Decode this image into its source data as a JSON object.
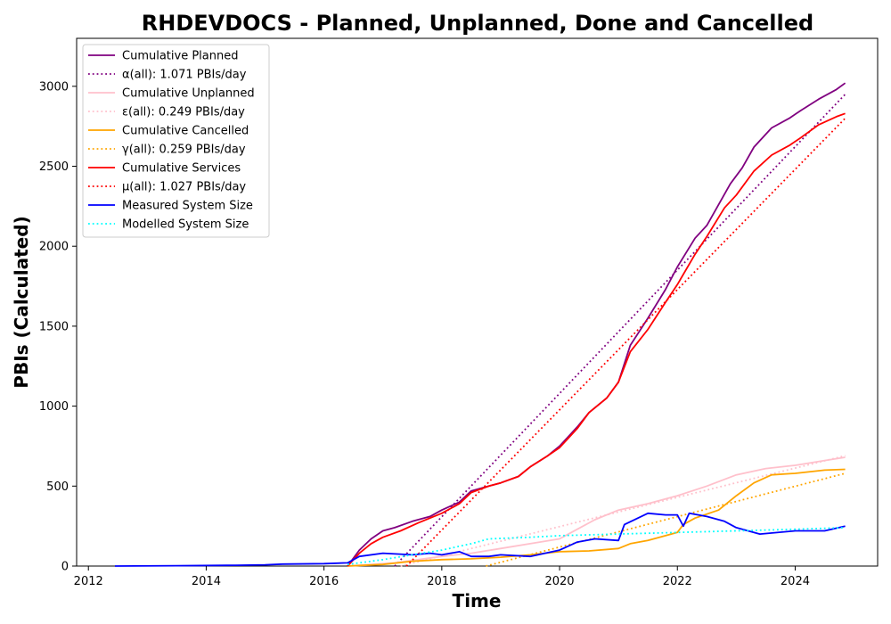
{
  "chart_data": {
    "type": "line",
    "title": "RHDEVDOCS - Planned, Unplanned, Done  and Cancelled",
    "xlabel": "Time",
    "ylabel": "PBIs (Calculated)",
    "xlim": [
      2011.8,
      2025.4
    ],
    "ylim": [
      0,
      3300
    ],
    "xticks": [
      2012,
      2014,
      2016,
      2018,
      2020,
      2022,
      2024
    ],
    "yticks": [
      0,
      500,
      1000,
      1500,
      2000,
      2500,
      3000
    ],
    "grid": false,
    "legend_position": "top-left",
    "series": [
      {
        "name": "Cumulative Planned",
        "color": "#800080",
        "style": "solid",
        "x": [
          2016.4,
          2016.6,
          2016.8,
          2017.0,
          2017.2,
          2017.5,
          2017.8,
          2018.0,
          2018.3,
          2018.5,
          2018.8,
          2019.0,
          2019.3,
          2019.5,
          2019.8,
          2020.0,
          2020.3,
          2020.5,
          2020.8,
          2021.0,
          2021.2,
          2021.5,
          2021.8,
          2022.0,
          2022.3,
          2022.5,
          2022.7,
          2022.9,
          2023.1,
          2023.3,
          2023.6,
          2023.9,
          2024.1,
          2024.4,
          2024.7,
          2024.85
        ],
        "y": [
          0,
          100,
          170,
          220,
          240,
          280,
          310,
          350,
          400,
          470,
          500,
          520,
          560,
          620,
          690,
          750,
          870,
          960,
          1050,
          1150,
          1380,
          1550,
          1730,
          1870,
          2050,
          2130,
          2260,
          2390,
          2490,
          2620,
          2740,
          2800,
          2850,
          2920,
          2980,
          3020
        ]
      },
      {
        "name": "α(all): 1.071 PBIs/day",
        "color": "#800080",
        "style": "dotted",
        "x": [
          2017.2,
          2024.85
        ],
        "y": [
          0,
          2950
        ]
      },
      {
        "name": "Cumulative Unplanned",
        "color": "#ffc0cb",
        "style": "solid",
        "x": [
          2016.4,
          2016.8,
          2017.2,
          2017.6,
          2018.0,
          2018.5,
          2019.0,
          2019.5,
          2020.0,
          2020.3,
          2020.6,
          2021.0,
          2021.5,
          2022.0,
          2022.5,
          2023.0,
          2023.5,
          2024.0,
          2024.5,
          2024.85
        ],
        "y": [
          0,
          10,
          20,
          40,
          60,
          80,
          110,
          140,
          170,
          230,
          290,
          350,
          390,
          440,
          500,
          570,
          610,
          630,
          660,
          680
        ]
      },
      {
        "name": "ε(all): 0.249 PBIs/day",
        "color": "#ffc0cb",
        "style": "dotted",
        "x": [
          2017.3,
          2024.85
        ],
        "y": [
          0,
          690
        ]
      },
      {
        "name": "Cumulative Cancelled",
        "color": "#ffa500",
        "style": "solid",
        "x": [
          2016.4,
          2017.0,
          2017.5,
          2018.0,
          2018.5,
          2019.0,
          2019.5,
          2020.0,
          2020.5,
          2021.0,
          2021.2,
          2021.5,
          2021.8,
          2022.0,
          2022.1,
          2022.3,
          2022.7,
          2023.0,
          2023.3,
          2023.6,
          2024.0,
          2024.5,
          2024.85
        ],
        "y": [
          0,
          10,
          30,
          40,
          45,
          55,
          70,
          90,
          95,
          110,
          140,
          160,
          190,
          210,
          260,
          300,
          350,
          440,
          520,
          570,
          580,
          600,
          605
        ]
      },
      {
        "name": "γ(all): 0.259 PBIs/day",
        "color": "#ffa500",
        "style": "dotted",
        "x": [
          2018.75,
          2024.85
        ],
        "y": [
          0,
          580
        ]
      },
      {
        "name": "Cumulative Services",
        "color": "#ff0000",
        "style": "solid",
        "x": [
          2016.4,
          2016.6,
          2016.8,
          2017.0,
          2017.3,
          2017.6,
          2018.0,
          2018.3,
          2018.5,
          2018.8,
          2019.0,
          2019.3,
          2019.5,
          2019.8,
          2020.0,
          2020.3,
          2020.5,
          2020.8,
          2021.0,
          2021.2,
          2021.5,
          2021.8,
          2022.0,
          2022.3,
          2022.5,
          2022.8,
          2023.0,
          2023.3,
          2023.6,
          2023.9,
          2024.1,
          2024.4,
          2024.7,
          2024.85
        ],
        "y": [
          0,
          80,
          140,
          180,
          220,
          270,
          330,
          390,
          460,
          500,
          520,
          560,
          620,
          690,
          740,
          860,
          960,
          1050,
          1150,
          1340,
          1480,
          1650,
          1760,
          1950,
          2060,
          2240,
          2320,
          2470,
          2570,
          2630,
          2680,
          2760,
          2810,
          2830
        ]
      },
      {
        "name": "μ(all): 1.027 PBIs/day",
        "color": "#ff0000",
        "style": "dotted",
        "x": [
          2017.4,
          2024.85
        ],
        "y": [
          0,
          2800
        ]
      },
      {
        "name": "Measured System Size",
        "color": "#0000ff",
        "style": "solid",
        "x": [
          2012.45,
          2013.5,
          2014.5,
          2015.0,
          2015.3,
          2016.0,
          2016.4,
          2016.6,
          2017.0,
          2017.5,
          2017.8,
          2018.0,
          2018.3,
          2018.5,
          2018.8,
          2019.0,
          2019.5,
          2020.0,
          2020.3,
          2020.6,
          2021.0,
          2021.1,
          2021.5,
          2021.8,
          2022.0,
          2022.1,
          2022.2,
          2022.5,
          2022.8,
          2023.0,
          2023.4,
          2024.0,
          2024.5,
          2024.85
        ],
        "y": [
          0,
          2,
          5,
          8,
          12,
          15,
          20,
          60,
          80,
          70,
          80,
          70,
          90,
          60,
          60,
          70,
          60,
          100,
          150,
          170,
          160,
          260,
          330,
          320,
          320,
          250,
          330,
          310,
          280,
          240,
          200,
          220,
          220,
          250
        ]
      },
      {
        "name": "Modelled System Size",
        "color": "#00ffff",
        "style": "dotted",
        "x": [
          2016.4,
          2017.0,
          2017.5,
          2018.0,
          2018.5,
          2018.8,
          2019.5,
          2020.0,
          2021.0,
          2022.0,
          2023.0,
          2024.0,
          2024.85
        ],
        "y": [
          10,
          40,
          70,
          100,
          140,
          170,
          180,
          190,
          200,
          210,
          220,
          230,
          240
        ]
      }
    ]
  }
}
